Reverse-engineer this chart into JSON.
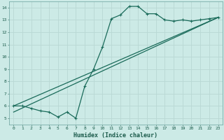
{
  "xlabel": "Humidex (Indice chaleur)",
  "bg_color": "#cceae6",
  "grid_color": "#b8d8d4",
  "line_color": "#1a6b5a",
  "curve1_x": [
    0,
    1,
    2,
    3,
    4,
    5,
    6,
    7,
    8,
    9,
    10,
    11,
    12,
    13,
    14,
    15,
    16,
    17,
    18,
    19,
    20,
    21,
    22,
    23
  ],
  "curve1_y": [
    6.0,
    6.0,
    5.8,
    5.6,
    5.5,
    5.1,
    5.5,
    5.0,
    7.6,
    9.0,
    10.8,
    13.1,
    13.4,
    14.1,
    14.1,
    13.5,
    13.5,
    13.0,
    12.9,
    13.0,
    12.9,
    13.0,
    13.1,
    13.2
  ],
  "curve2_x": [
    0,
    23
  ],
  "curve2_y": [
    5.5,
    13.2
  ],
  "curve3_x": [
    0,
    23
  ],
  "curve3_y": [
    6.0,
    13.2
  ],
  "xlim": [
    -0.5,
    23.5
  ],
  "ylim": [
    4.5,
    14.5
  ],
  "xticks": [
    0,
    1,
    2,
    3,
    4,
    5,
    6,
    7,
    8,
    9,
    10,
    11,
    12,
    13,
    14,
    15,
    16,
    17,
    18,
    19,
    20,
    21,
    22,
    23
  ],
  "yticks": [
    5,
    6,
    7,
    8,
    9,
    10,
    11,
    12,
    13,
    14
  ],
  "tick_fontsize": 4.5,
  "label_fontsize": 6.0
}
